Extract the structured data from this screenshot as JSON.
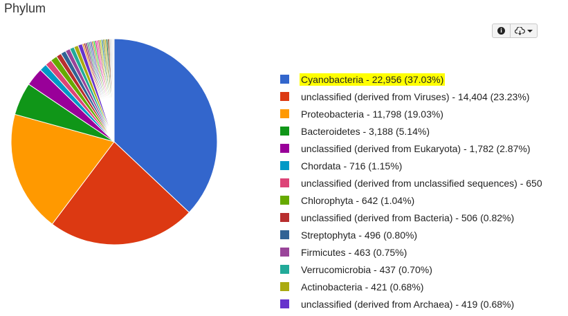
{
  "title": "Phylum",
  "toolbar": {
    "info_icon": "info-icon",
    "download_icon": "cloud-download-icon",
    "highlight_color": "#ffff00"
  },
  "chart_data": {
    "type": "pie",
    "title": "Phylum",
    "legend_position": "right",
    "highlighted_category": "Cyanobacteria",
    "categories": [
      "Cyanobacteria",
      "unclassified (derived from Viruses)",
      "Proteobacteria",
      "Bacteroidetes",
      "unclassified (derived from Eukaryota)",
      "Chordata",
      "unclassified (derived from unclassified sequences)",
      "Chlorophyta",
      "unclassified (derived from Bacteria)",
      "Streptophyta",
      "Firmicutes",
      "Verrucomicrobia",
      "Actinobacteria",
      "unclassified (derived from Archaea)"
    ],
    "values": [
      22956,
      14404,
      11798,
      3188,
      1782,
      716,
      650,
      642,
      506,
      496,
      463,
      437,
      421,
      419
    ],
    "percents": [
      37.03,
      23.23,
      19.03,
      5.14,
      2.87,
      1.15,
      null,
      1.04,
      0.82,
      0.8,
      0.75,
      0.7,
      0.68,
      0.68
    ],
    "colors": [
      "#3366cc",
      "#dc3912",
      "#ff9900",
      "#109618",
      "#990099",
      "#0099c6",
      "#dd4477",
      "#66aa00",
      "#b82e2e",
      "#316395",
      "#994499",
      "#22aa99",
      "#aaaa11",
      "#6633cc"
    ],
    "legend_labels": [
      "Cyanobacteria - 22,956 (37.03%)",
      "unclassified (derived from Viruses) - 14,404 (23.23%)",
      "Proteobacteria - 11,798 (19.03%)",
      "Bacteroidetes - 3,188 (5.14%)",
      "unclassified (derived from Eukaryota) - 1,782 (2.87%)",
      "Chordata - 716 (1.15%)",
      "unclassified (derived from unclassified sequences) - 650",
      "Chlorophyta - 642 (1.04%)",
      "unclassified (derived from Bacteria) - 506 (0.82%)",
      "Streptophyta - 496 (0.80%)",
      "Firmicutes - 463 (0.75%)",
      "Verrucomicrobia - 437 (0.70%)",
      "Actinobacteria - 421 (0.68%)",
      "unclassified (derived from Archaea) - 419 (0.68%)"
    ],
    "other_slice_colors": [
      "#e67300",
      "#8b0707",
      "#651067",
      "#329262",
      "#5574a6",
      "#3b3eac",
      "#b77322",
      "#16d620",
      "#b91383",
      "#f4359e",
      "#9c5935",
      "#a9c413",
      "#2a778d",
      "#668d1c",
      "#bea413",
      "#0c5922",
      "#743411",
      "#cccccc",
      "#e0e0e0",
      "#f0f0f0"
    ]
  }
}
